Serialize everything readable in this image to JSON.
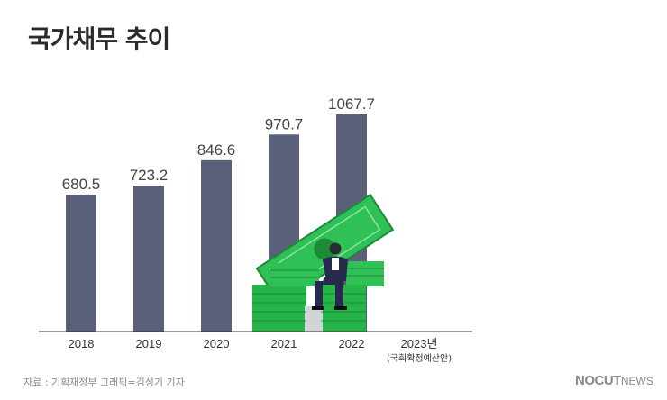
{
  "chart_data": {
    "type": "bar",
    "title": "국가채무 추이",
    "categories": [
      "2018",
      "2019",
      "2020",
      "2021",
      "2022",
      "2023년"
    ],
    "values": [
      680.5,
      723.2,
      846.6,
      970.7,
      1067.7,
      null
    ],
    "value_labels": [
      "680.5",
      "723.2",
      "846.6",
      "970.7",
      "1067.7",
      ""
    ],
    "category_sublabels": [
      "",
      "",
      "",
      "",
      "",
      "(국회확정예산안)"
    ],
    "xlabel": "",
    "ylabel": "",
    "ylim": [
      0,
      1200
    ],
    "grid": false,
    "legend": "none"
  },
  "footer": {
    "source": "자료 : 기획재정부   그래픽=김성기 기자",
    "brand_main": "NOCUT",
    "brand_sub": "NEWS"
  },
  "colors": {
    "bar": "#5a5f7a",
    "axis": "#333333",
    "money_green": "#27b54a",
    "money_dark": "#1d8a38"
  }
}
